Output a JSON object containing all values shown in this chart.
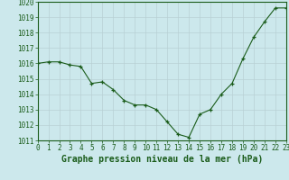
{
  "hours": [
    0,
    1,
    2,
    3,
    4,
    5,
    6,
    7,
    8,
    9,
    10,
    11,
    12,
    13,
    14,
    15,
    16,
    17,
    18,
    19,
    20,
    21,
    22,
    23
  ],
  "pressure": [
    1016.0,
    1016.1,
    1016.1,
    1015.9,
    1015.8,
    1014.7,
    1014.8,
    1014.3,
    1013.6,
    1013.3,
    1013.3,
    1013.0,
    1012.2,
    1011.4,
    1011.2,
    1012.7,
    1013.0,
    1014.0,
    1014.7,
    1016.3,
    1017.7,
    1018.7,
    1019.6,
    1019.6
  ],
  "ylim": [
    1011,
    1020
  ],
  "yticks": [
    1011,
    1012,
    1013,
    1014,
    1015,
    1016,
    1017,
    1018,
    1019,
    1020
  ],
  "xticks": [
    0,
    1,
    2,
    3,
    4,
    5,
    6,
    7,
    8,
    9,
    10,
    11,
    12,
    13,
    14,
    15,
    16,
    17,
    18,
    19,
    20,
    21,
    22,
    23
  ],
  "line_color": "#1a5c1a",
  "marker_color": "#1a5c1a",
  "bg_color": "#cce8ec",
  "grid_color": "#b8d0d4",
  "xlabel": "Graphe pression niveau de la mer (hPa)",
  "xlabel_color": "#1a5c1a",
  "tick_label_color": "#1a5c1a",
  "tick_fontsize": 5.5,
  "xlabel_fontsize": 7.0
}
